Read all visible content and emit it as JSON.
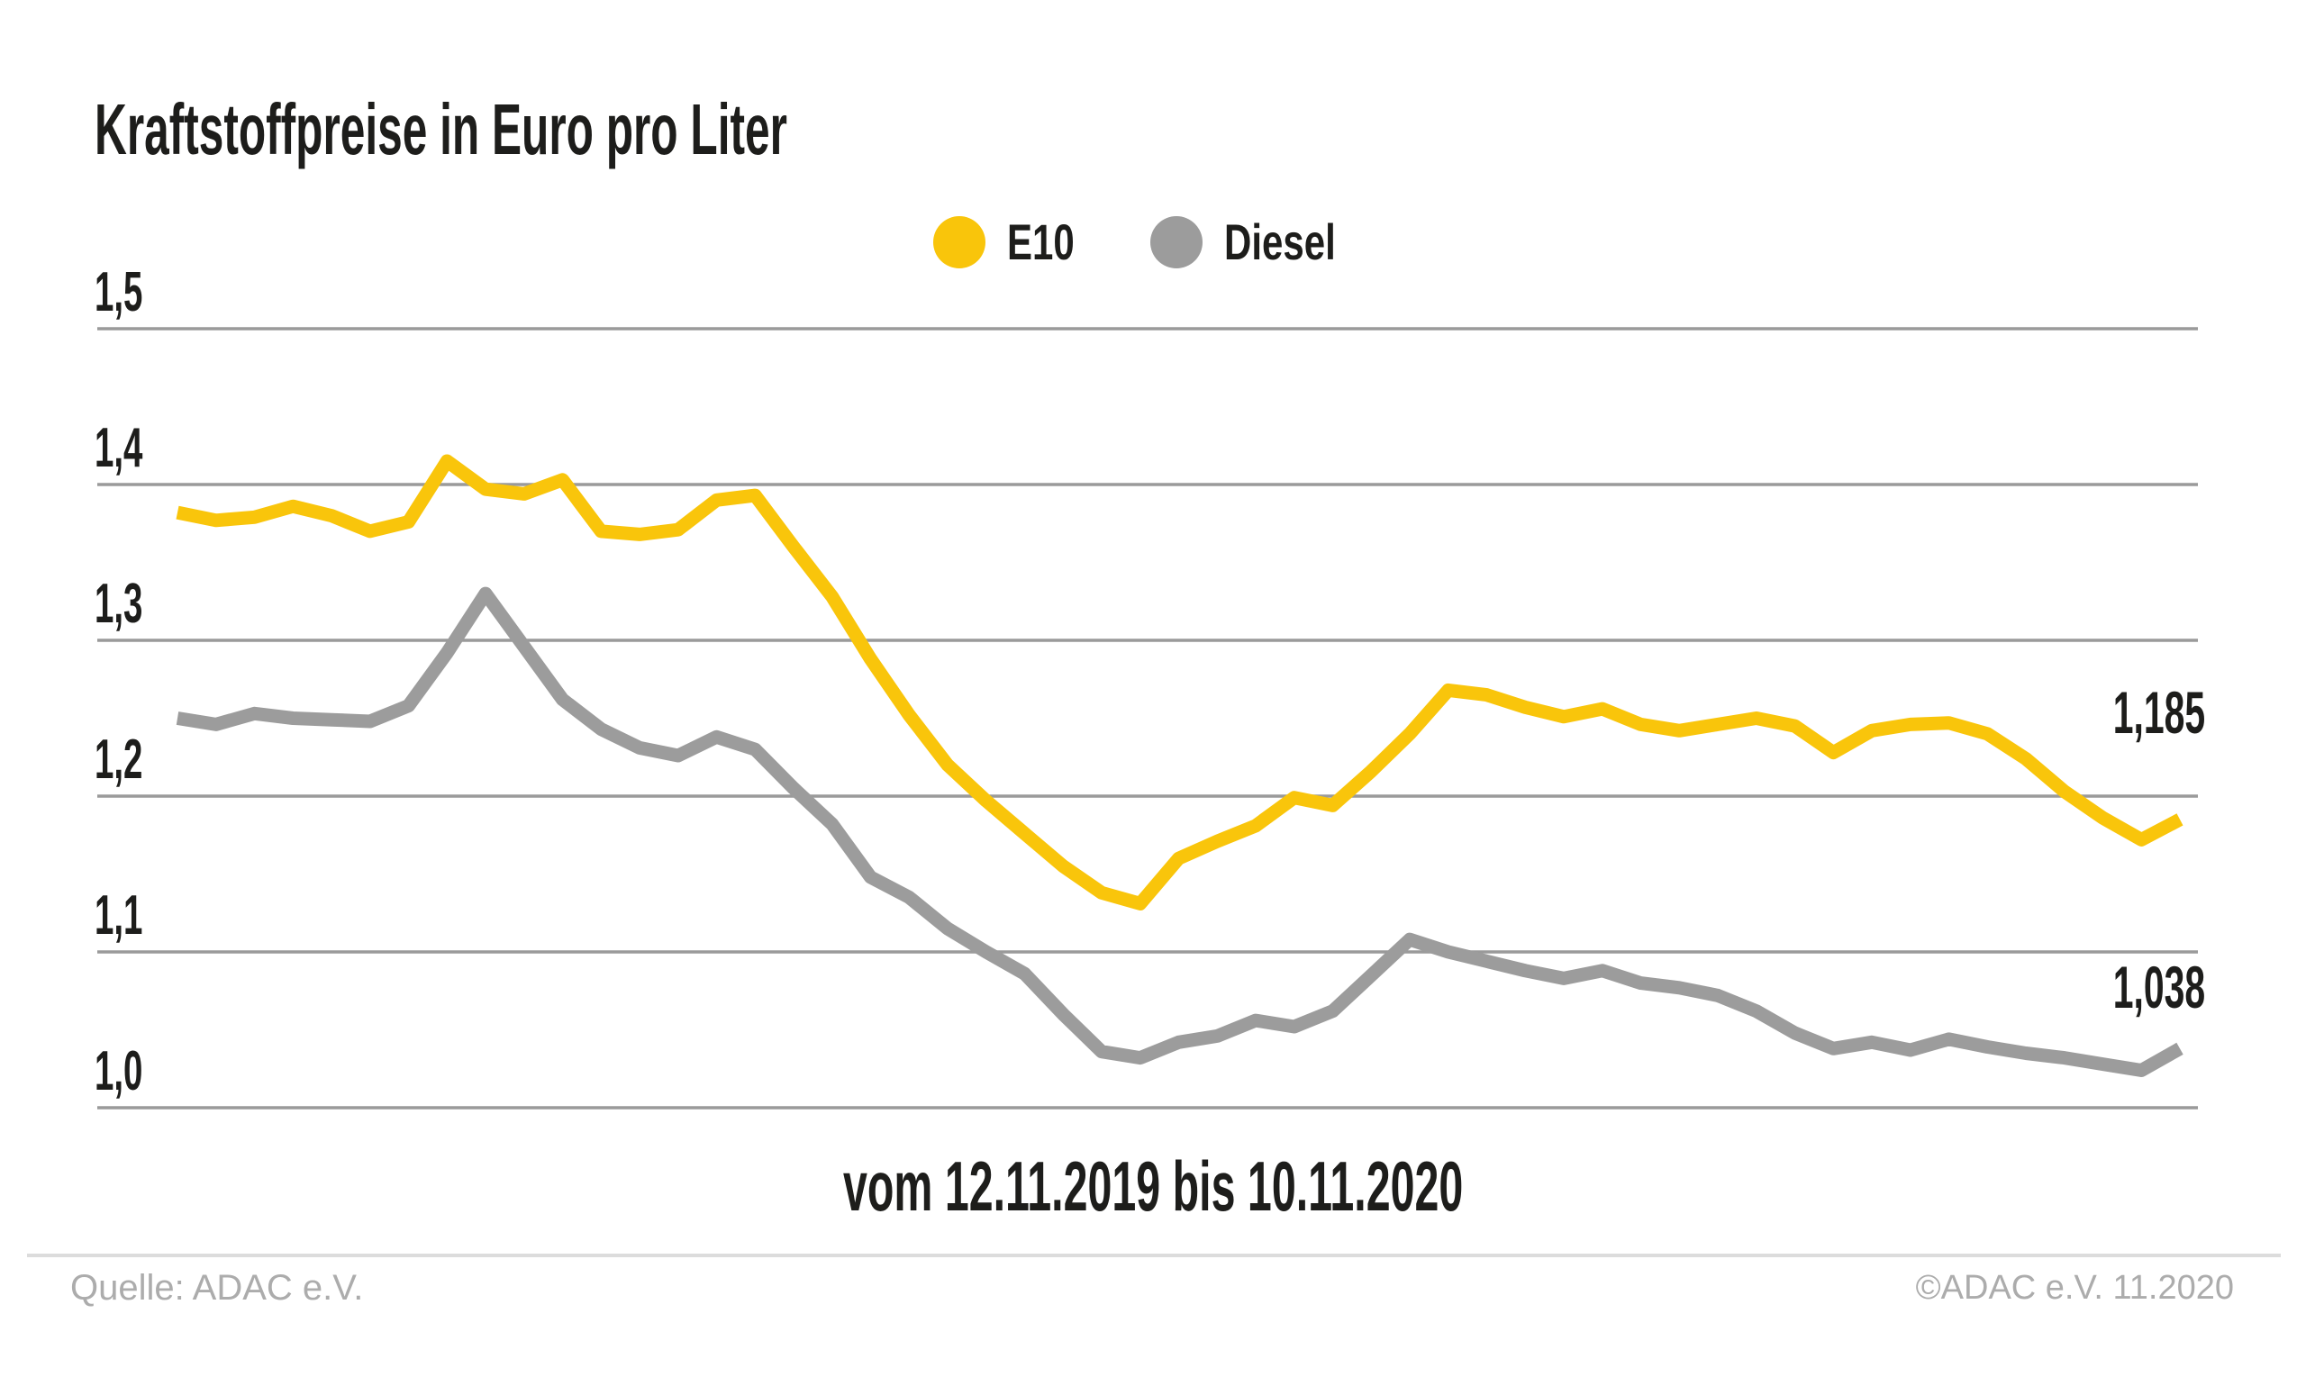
{
  "title": "Kraftstoffpreise in Euro pro Liter",
  "legend": {
    "items": [
      {
        "label": "E10",
        "color": "#F9C50B"
      },
      {
        "label": "Diesel",
        "color": "#9C9C9C"
      }
    ]
  },
  "footer": {
    "source": "Quelle: ADAC e.V.",
    "copyright": "©ADAC e.V. 11.2020"
  },
  "colors": {
    "e10": "#F9C50B",
    "diesel": "#9C9C9C",
    "gridline": "#9a9a9a",
    "text": "#1d1d1b",
    "footer_text": "#acacac",
    "divider": "#dcdcdc",
    "background": "#ffffff"
  },
  "chart_data": {
    "type": "line",
    "title": "Kraftstoffpreise in Euro pro Liter",
    "xlabel": "vom 12.11.2019 bis 10.11.2020",
    "ylabel": "Euro pro Liter",
    "x_start": "12.11.2019",
    "x_end": "10.11.2020",
    "x_interval": "weekly",
    "points_per_series": 53,
    "ylim": [
      1.0,
      1.5
    ],
    "grid": true,
    "legend_position": "top-center",
    "yticks": [
      {
        "value": 1.5,
        "label": "1,5"
      },
      {
        "value": 1.4,
        "label": "1,4"
      },
      {
        "value": 1.3,
        "label": "1,3"
      },
      {
        "value": 1.2,
        "label": "1,2"
      },
      {
        "value": 1.1,
        "label": "1,1"
      },
      {
        "value": 1.0,
        "label": "1,0"
      }
    ],
    "end_labels": [
      {
        "series": "E10",
        "text": "1,185",
        "value": 1.185
      },
      {
        "series": "Diesel",
        "text": "1,038",
        "value": 1.038
      }
    ],
    "series": [
      {
        "name": "E10",
        "color": "#F9C50B",
        "values": [
          1.382,
          1.377,
          1.379,
          1.386,
          1.38,
          1.37,
          1.376,
          1.415,
          1.397,
          1.394,
          1.403,
          1.37,
          1.368,
          1.371,
          1.39,
          1.393,
          1.36,
          1.328,
          1.288,
          1.252,
          1.22,
          1.197,
          1.176,
          1.155,
          1.138,
          1.131,
          1.16,
          1.171,
          1.181,
          1.199,
          1.194,
          1.216,
          1.24,
          1.268,
          1.265,
          1.257,
          1.251,
          1.256,
          1.246,
          1.242,
          1.246,
          1.25,
          1.245,
          1.228,
          1.242,
          1.246,
          1.247,
          1.24,
          1.224,
          1.203,
          1.186,
          1.172,
          1.185
        ]
      },
      {
        "name": "Diesel",
        "color": "#9C9C9C",
        "values": [
          1.25,
          1.246,
          1.253,
          1.25,
          1.249,
          1.248,
          1.258,
          1.292,
          1.33,
          1.296,
          1.262,
          1.243,
          1.231,
          1.226,
          1.238,
          1.23,
          1.205,
          1.182,
          1.148,
          1.135,
          1.115,
          1.1,
          1.086,
          1.06,
          1.036,
          1.032,
          1.042,
          1.046,
          1.056,
          1.052,
          1.062,
          1.085,
          1.108,
          1.1,
          1.094,
          1.088,
          1.083,
          1.088,
          1.08,
          1.077,
          1.072,
          1.062,
          1.048,
          1.038,
          1.042,
          1.037,
          1.044,
          1.039,
          1.035,
          1.032,
          1.028,
          1.024,
          1.038
        ]
      }
    ]
  }
}
